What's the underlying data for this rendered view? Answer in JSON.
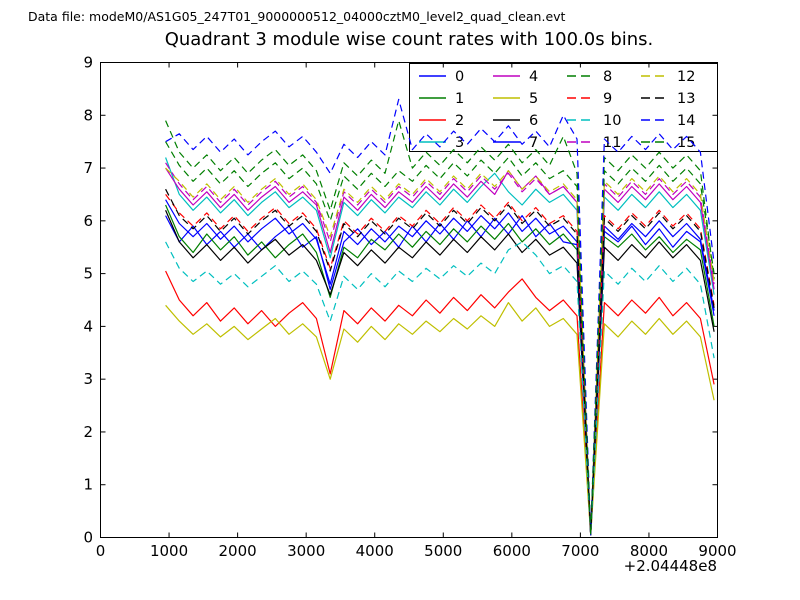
{
  "header": {
    "label": "Data file: modeM0/AS1G05_247T01_9000000512_04000cztM0_level2_quad_clean.evt"
  },
  "chart_data": {
    "type": "line",
    "title": "Quadrant 3 module wise count rates with 100.0s bins.",
    "xlabel": "",
    "ylabel": "",
    "x_offset_label": "+2.04448e8",
    "xlim": [
      0,
      9000
    ],
    "ylim": [
      0,
      9
    ],
    "xticks": [
      0,
      1000,
      2000,
      3000,
      4000,
      5000,
      6000,
      7000,
      8000,
      9000
    ],
    "yticks": [
      0,
      1,
      2,
      3,
      4,
      5,
      6,
      7,
      8,
      9
    ],
    "grid": false,
    "legend_position": "upper right",
    "legend_columns": 4,
    "x": [
      950,
      1150,
      1350,
      1550,
      1750,
      1950,
      2150,
      2350,
      2550,
      2750,
      2950,
      3150,
      3350,
      3550,
      3750,
      3950,
      4150,
      4350,
      4550,
      4750,
      4950,
      5150,
      5350,
      5550,
      5750,
      5950,
      6150,
      6350,
      6550,
      6750,
      6950,
      7150,
      7350,
      7550,
      7750,
      7950,
      8150,
      8350,
      8550,
      8750,
      8950
    ],
    "series": [
      {
        "name": "0",
        "color": "#0000ff",
        "style": "solid",
        "values": [
          6.1,
          5.6,
          5.9,
          5.55,
          5.8,
          5.5,
          5.75,
          5.45,
          5.7,
          5.9,
          5.5,
          5.7,
          4.7,
          5.6,
          5.85,
          5.55,
          5.8,
          5.5,
          5.9,
          5.6,
          5.95,
          5.65,
          6.0,
          5.7,
          6.05,
          5.75,
          6.1,
          5.7,
          5.95,
          5.6,
          5.55,
          0.05,
          5.8,
          5.6,
          5.9,
          5.55,
          5.85,
          5.5,
          5.8,
          5.6,
          4.2
        ]
      },
      {
        "name": "1",
        "color": "#007f00",
        "style": "solid",
        "values": [
          6.3,
          5.7,
          5.4,
          5.75,
          5.45,
          5.7,
          5.35,
          5.6,
          5.3,
          5.55,
          5.75,
          5.4,
          4.55,
          5.5,
          5.3,
          5.65,
          5.45,
          5.75,
          5.5,
          5.8,
          5.55,
          5.85,
          5.6,
          5.9,
          5.65,
          5.95,
          5.6,
          5.85,
          5.55,
          5.75,
          5.45,
          0.05,
          5.7,
          5.5,
          5.75,
          5.45,
          5.7,
          5.4,
          5.65,
          5.45,
          4.0
        ]
      },
      {
        "name": "2",
        "color": "#ff0000",
        "style": "solid",
        "values": [
          5.05,
          4.5,
          4.2,
          4.45,
          4.1,
          4.35,
          4.05,
          4.3,
          4.0,
          4.25,
          4.45,
          4.15,
          3.1,
          4.3,
          4.05,
          4.35,
          4.1,
          4.4,
          4.2,
          4.5,
          4.25,
          4.55,
          4.3,
          4.6,
          4.35,
          4.65,
          4.9,
          4.55,
          4.3,
          4.5,
          4.2,
          0.05,
          4.45,
          4.2,
          4.5,
          4.25,
          4.55,
          4.2,
          4.45,
          4.15,
          2.9
        ]
      },
      {
        "name": "3",
        "color": "#00bfbf",
        "style": "solid",
        "values": [
          7.2,
          6.5,
          6.2,
          6.45,
          6.15,
          6.4,
          6.1,
          6.35,
          6.55,
          6.25,
          6.45,
          6.2,
          5.3,
          6.35,
          6.1,
          6.4,
          6.15,
          6.45,
          6.25,
          6.55,
          6.3,
          6.6,
          6.35,
          6.65,
          6.9,
          6.55,
          6.3,
          6.6,
          6.35,
          6.5,
          6.2,
          0.05,
          6.45,
          6.2,
          6.5,
          6.25,
          6.55,
          6.25,
          6.5,
          6.2,
          4.6
        ]
      },
      {
        "name": "4",
        "color": "#bf00bf",
        "style": "solid",
        "values": [
          7.0,
          6.6,
          6.3,
          6.55,
          6.25,
          6.5,
          6.2,
          6.45,
          6.65,
          6.35,
          6.55,
          6.3,
          5.4,
          6.45,
          6.2,
          6.5,
          6.25,
          6.55,
          6.35,
          6.65,
          6.4,
          6.7,
          6.45,
          6.75,
          6.5,
          6.95,
          6.6,
          6.85,
          6.5,
          6.65,
          6.35,
          0.05,
          6.6,
          6.35,
          6.65,
          6.4,
          6.7,
          6.4,
          6.65,
          6.35,
          4.7
        ]
      },
      {
        "name": "5",
        "color": "#bfbf00",
        "style": "solid",
        "values": [
          4.4,
          4.1,
          3.85,
          4.05,
          3.8,
          4.0,
          3.75,
          3.95,
          4.15,
          3.85,
          4.05,
          3.8,
          3.0,
          3.95,
          3.7,
          4.0,
          3.75,
          4.05,
          3.85,
          4.1,
          3.9,
          4.15,
          3.95,
          4.2,
          4.0,
          4.45,
          4.1,
          4.35,
          4.0,
          4.15,
          3.85,
          0.05,
          4.05,
          3.8,
          4.1,
          3.85,
          4.15,
          3.85,
          4.1,
          3.8,
          2.6
        ]
      },
      {
        "name": "6",
        "color": "#000000",
        "style": "solid",
        "values": [
          6.2,
          5.6,
          5.3,
          5.55,
          5.25,
          5.5,
          5.2,
          5.45,
          5.65,
          5.35,
          5.55,
          5.25,
          4.6,
          5.4,
          5.15,
          5.45,
          5.2,
          5.5,
          5.3,
          5.6,
          5.35,
          5.65,
          5.4,
          5.7,
          5.45,
          5.75,
          5.4,
          5.65,
          5.35,
          5.5,
          5.2,
          0.05,
          5.5,
          5.25,
          5.55,
          5.3,
          5.6,
          5.3,
          5.55,
          5.25,
          3.9
        ]
      },
      {
        "name": "7",
        "color": "#0000ff",
        "style": "solid",
        "values": [
          6.4,
          5.95,
          5.7,
          5.95,
          5.65,
          5.9,
          5.6,
          5.85,
          6.05,
          5.75,
          5.95,
          5.65,
          4.8,
          5.8,
          5.55,
          5.85,
          5.6,
          5.9,
          5.7,
          6.0,
          5.75,
          6.05,
          5.8,
          6.1,
          5.85,
          6.15,
          5.8,
          6.05,
          5.75,
          5.9,
          5.6,
          0.05,
          5.9,
          5.65,
          5.95,
          5.7,
          6.0,
          5.7,
          5.95,
          5.65,
          4.3
        ]
      },
      {
        "name": "8",
        "color": "#007f00",
        "style": "dashed",
        "values": [
          7.9,
          7.3,
          7.0,
          7.25,
          6.95,
          7.2,
          6.9,
          7.15,
          7.35,
          7.05,
          7.25,
          6.95,
          6.2,
          7.1,
          6.85,
          7.15,
          6.9,
          7.9,
          7.0,
          7.3,
          7.05,
          7.35,
          7.1,
          7.4,
          7.15,
          7.45,
          7.1,
          7.35,
          7.05,
          7.6,
          6.9,
          0.05,
          7.2,
          6.95,
          7.25,
          7.0,
          7.3,
          7.0,
          7.25,
          6.95,
          4.9
        ]
      },
      {
        "name": "9",
        "color": "#ff0000",
        "style": "dashed",
        "values": [
          6.5,
          6.15,
          5.9,
          6.15,
          5.85,
          6.1,
          5.8,
          6.05,
          6.25,
          5.95,
          6.15,
          5.85,
          5.1,
          6.0,
          5.75,
          6.05,
          5.8,
          6.1,
          5.9,
          6.2,
          5.95,
          6.25,
          6.0,
          6.3,
          6.05,
          6.35,
          6.0,
          6.25,
          5.95,
          6.1,
          5.8,
          0.05,
          6.1,
          5.85,
          6.15,
          5.9,
          6.2,
          5.9,
          6.15,
          5.85,
          4.4
        ]
      },
      {
        "name": "10",
        "color": "#00bfbf",
        "style": "dashed",
        "values": [
          5.6,
          5.1,
          4.85,
          5.05,
          4.8,
          5.0,
          4.75,
          4.95,
          5.15,
          4.85,
          5.05,
          4.8,
          4.1,
          4.95,
          4.7,
          5.0,
          4.75,
          5.05,
          4.85,
          5.1,
          4.9,
          5.15,
          4.95,
          5.2,
          5.0,
          5.45,
          5.6,
          5.35,
          5.0,
          5.15,
          4.85,
          0.05,
          5.05,
          4.8,
          5.1,
          4.85,
          5.15,
          4.85,
          5.1,
          4.8,
          3.4
        ]
      },
      {
        "name": "11",
        "color": "#bf00bf",
        "style": "dashed",
        "values": [
          7.1,
          6.7,
          6.4,
          6.65,
          6.35,
          6.6,
          6.3,
          6.55,
          6.75,
          6.45,
          6.65,
          6.35,
          5.6,
          6.55,
          6.3,
          6.6,
          6.35,
          6.65,
          6.45,
          6.75,
          6.5,
          6.8,
          6.55,
          6.85,
          6.6,
          6.9,
          6.55,
          6.8,
          6.5,
          6.65,
          6.35,
          0.05,
          6.7,
          6.45,
          6.75,
          6.5,
          6.8,
          6.5,
          6.75,
          6.45,
          4.8
        ]
      },
      {
        "name": "12",
        "color": "#bfbf00",
        "style": "dashed",
        "values": [
          7.0,
          6.75,
          6.45,
          6.7,
          6.4,
          6.65,
          6.35,
          6.6,
          6.8,
          6.5,
          6.7,
          6.4,
          5.7,
          6.6,
          6.35,
          6.65,
          6.4,
          6.7,
          6.5,
          6.8,
          6.55,
          6.85,
          6.6,
          6.9,
          6.65,
          6.95,
          6.6,
          6.85,
          6.55,
          6.7,
          6.4,
          0.05,
          6.75,
          6.5,
          6.8,
          6.55,
          6.85,
          6.55,
          6.8,
          6.5,
          4.85
        ]
      },
      {
        "name": "13",
        "color": "#000000",
        "style": "dashed",
        "values": [
          6.6,
          6.1,
          5.85,
          6.1,
          5.8,
          6.05,
          5.75,
          6.0,
          6.2,
          5.9,
          6.1,
          5.8,
          5.05,
          5.95,
          5.7,
          6.0,
          5.75,
          6.05,
          5.85,
          6.15,
          5.9,
          6.2,
          5.95,
          6.25,
          6.0,
          6.3,
          5.95,
          6.2,
          5.9,
          6.05,
          5.75,
          0.05,
          6.05,
          5.8,
          6.1,
          5.85,
          6.15,
          5.85,
          6.1,
          5.8,
          4.35
        ]
      },
      {
        "name": "14",
        "color": "#0000ff",
        "style": "dashed",
        "values": [
          7.5,
          7.65,
          7.35,
          7.6,
          7.3,
          7.55,
          7.25,
          7.5,
          7.7,
          7.4,
          7.6,
          7.3,
          6.9,
          7.45,
          7.2,
          7.5,
          7.25,
          8.3,
          7.35,
          7.65,
          7.4,
          7.7,
          7.45,
          7.75,
          7.5,
          7.8,
          7.45,
          7.7,
          7.4,
          8.0,
          7.55,
          0.05,
          7.55,
          7.3,
          7.6,
          7.35,
          7.65,
          7.35,
          7.6,
          7.3,
          5.2
        ]
      },
      {
        "name": "15",
        "color": "#007f00",
        "style": "dashed",
        "values": [
          7.5,
          7.05,
          6.75,
          7.0,
          6.7,
          6.95,
          6.65,
          6.9,
          7.1,
          6.8,
          7.0,
          6.7,
          6.0,
          6.85,
          6.6,
          6.9,
          6.65,
          6.95,
          6.75,
          7.05,
          6.8,
          7.1,
          6.85,
          7.15,
          6.9,
          7.2,
          6.85,
          7.1,
          6.8,
          6.95,
          6.65,
          0.05,
          6.95,
          6.7,
          7.0,
          6.75,
          7.05,
          6.75,
          7.0,
          6.7,
          5.0
        ]
      }
    ]
  },
  "colors": {
    "axis": "#000000",
    "background": "#ffffff"
  }
}
